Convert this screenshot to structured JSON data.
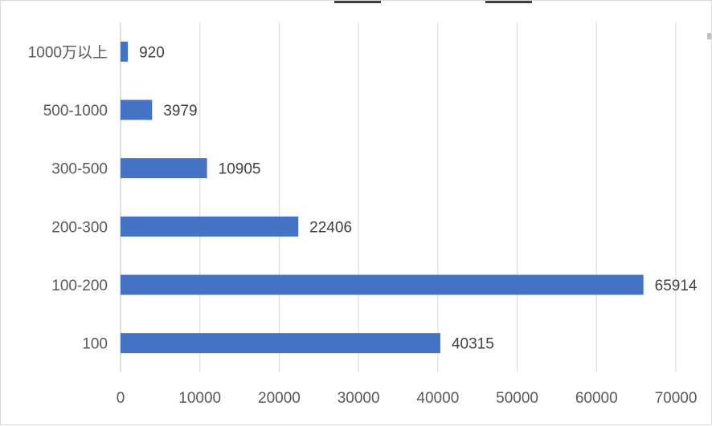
{
  "chart_data": {
    "type": "bar",
    "orientation": "horizontal",
    "categories": [
      "1000万以上",
      "500-1000",
      "300-500",
      "200-300",
      "100-200",
      "100"
    ],
    "values": [
      920,
      3979,
      10905,
      22406,
      65914,
      40315
    ],
    "xlim": [
      0,
      70000
    ],
    "xticks": [
      0,
      10000,
      20000,
      30000,
      40000,
      50000,
      60000,
      70000
    ],
    "grid": "vertical",
    "legend": "none",
    "bar_color": "#4472C4",
    "grid_color": "#d9d9d9",
    "axis_color": "#bfbfbf"
  }
}
